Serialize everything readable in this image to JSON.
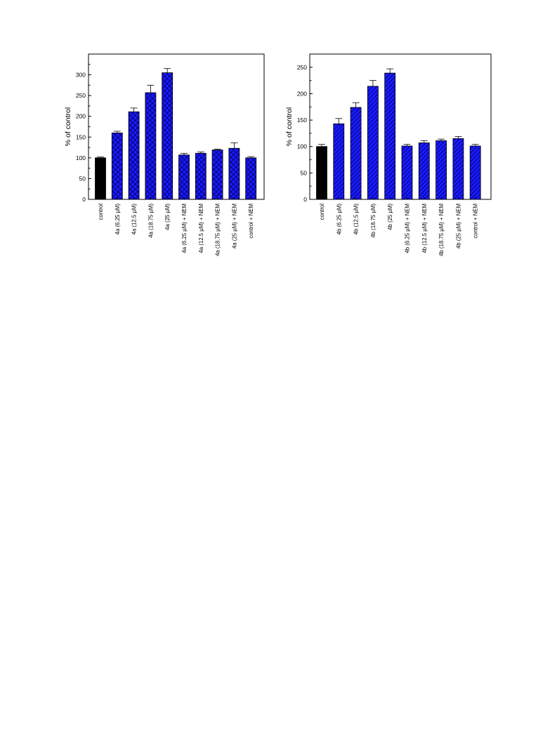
{
  "chart_data": [
    {
      "type": "bar",
      "title": "",
      "xlabel": "",
      "ylabel": "% of control",
      "ylim": [
        0,
        350
      ],
      "yticks": [
        0,
        50,
        100,
        150,
        200,
        250,
        300
      ],
      "categories": [
        "control",
        "4a (6.25 µM)",
        "4a (12.5 µM)",
        "4a (18.75 µM)",
        "4a (25 µM)",
        "4a (6.25 µM) + NEM",
        "4a (12.5 µM) + NEM",
        "4a (18.75 µM) + NEM",
        "4a (25 µM) + NEM",
        "control + NEM"
      ],
      "values": [
        100,
        160,
        211,
        257,
        305,
        107,
        111,
        119,
        123,
        100
      ],
      "errors": [
        2,
        4,
        9,
        18,
        10,
        4,
        3,
        2,
        13,
        3
      ],
      "fills": [
        "solid-black",
        "crosshatch-blue",
        "crosshatch-blue",
        "crosshatch-blue",
        "crosshatch-blue",
        "crosshatch-blue",
        "crosshatch-blue",
        "crosshatch-blue",
        "crosshatch-blue",
        "crosshatch-blue"
      ],
      "grid": false,
      "colors": {
        "bar": "#1a1aff",
        "control": "#000000",
        "hatch": "#00005a"
      }
    },
    {
      "type": "bar",
      "title": "",
      "xlabel": "",
      "ylabel": "% of control",
      "ylim": [
        0,
        275
      ],
      "yticks": [
        0,
        50,
        100,
        150,
        200,
        250
      ],
      "categories": [
        "control",
        "4b (6.25 µM)",
        "4b (12.5 µM)",
        "4b (18.75 µM)",
        "4b (25 µM)",
        "4b (6.25 µM) + NEM",
        "4b (12.5 µM) + NEM",
        "4b (18.75 µM) + NEM",
        "4b (25 µM) + NEM",
        "control + NEM"
      ],
      "values": [
        100,
        143,
        174,
        214,
        239,
        101,
        107,
        111,
        115,
        101
      ],
      "errors": [
        4,
        10,
        9,
        11,
        8,
        3,
        4,
        3,
        4,
        3
      ],
      "fills": [
        "solid-black",
        "diagonal-blue",
        "diagonal-blue",
        "diagonal-blue",
        "diagonal-blue",
        "diagonal-blue",
        "diagonal-blue",
        "diagonal-blue",
        "diagonal-blue",
        "diagonal-blue"
      ],
      "grid": false,
      "colors": {
        "bar": "#1a1aff",
        "control": "#000000",
        "hatch": "#00005a"
      }
    }
  ]
}
